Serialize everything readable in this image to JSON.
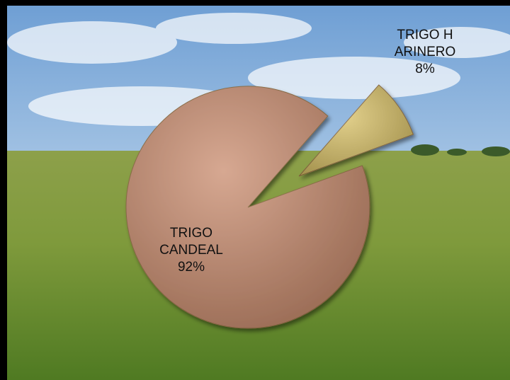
{
  "chart_data": {
    "type": "pie",
    "categories": [
      "TRIGO HARINERO",
      "TRIGO CANDEAL"
    ],
    "values": [
      8,
      92
    ],
    "value_labels": [
      "8%",
      "92%"
    ],
    "colors": [
      "#d8c065",
      "#c98b6d"
    ]
  }
}
